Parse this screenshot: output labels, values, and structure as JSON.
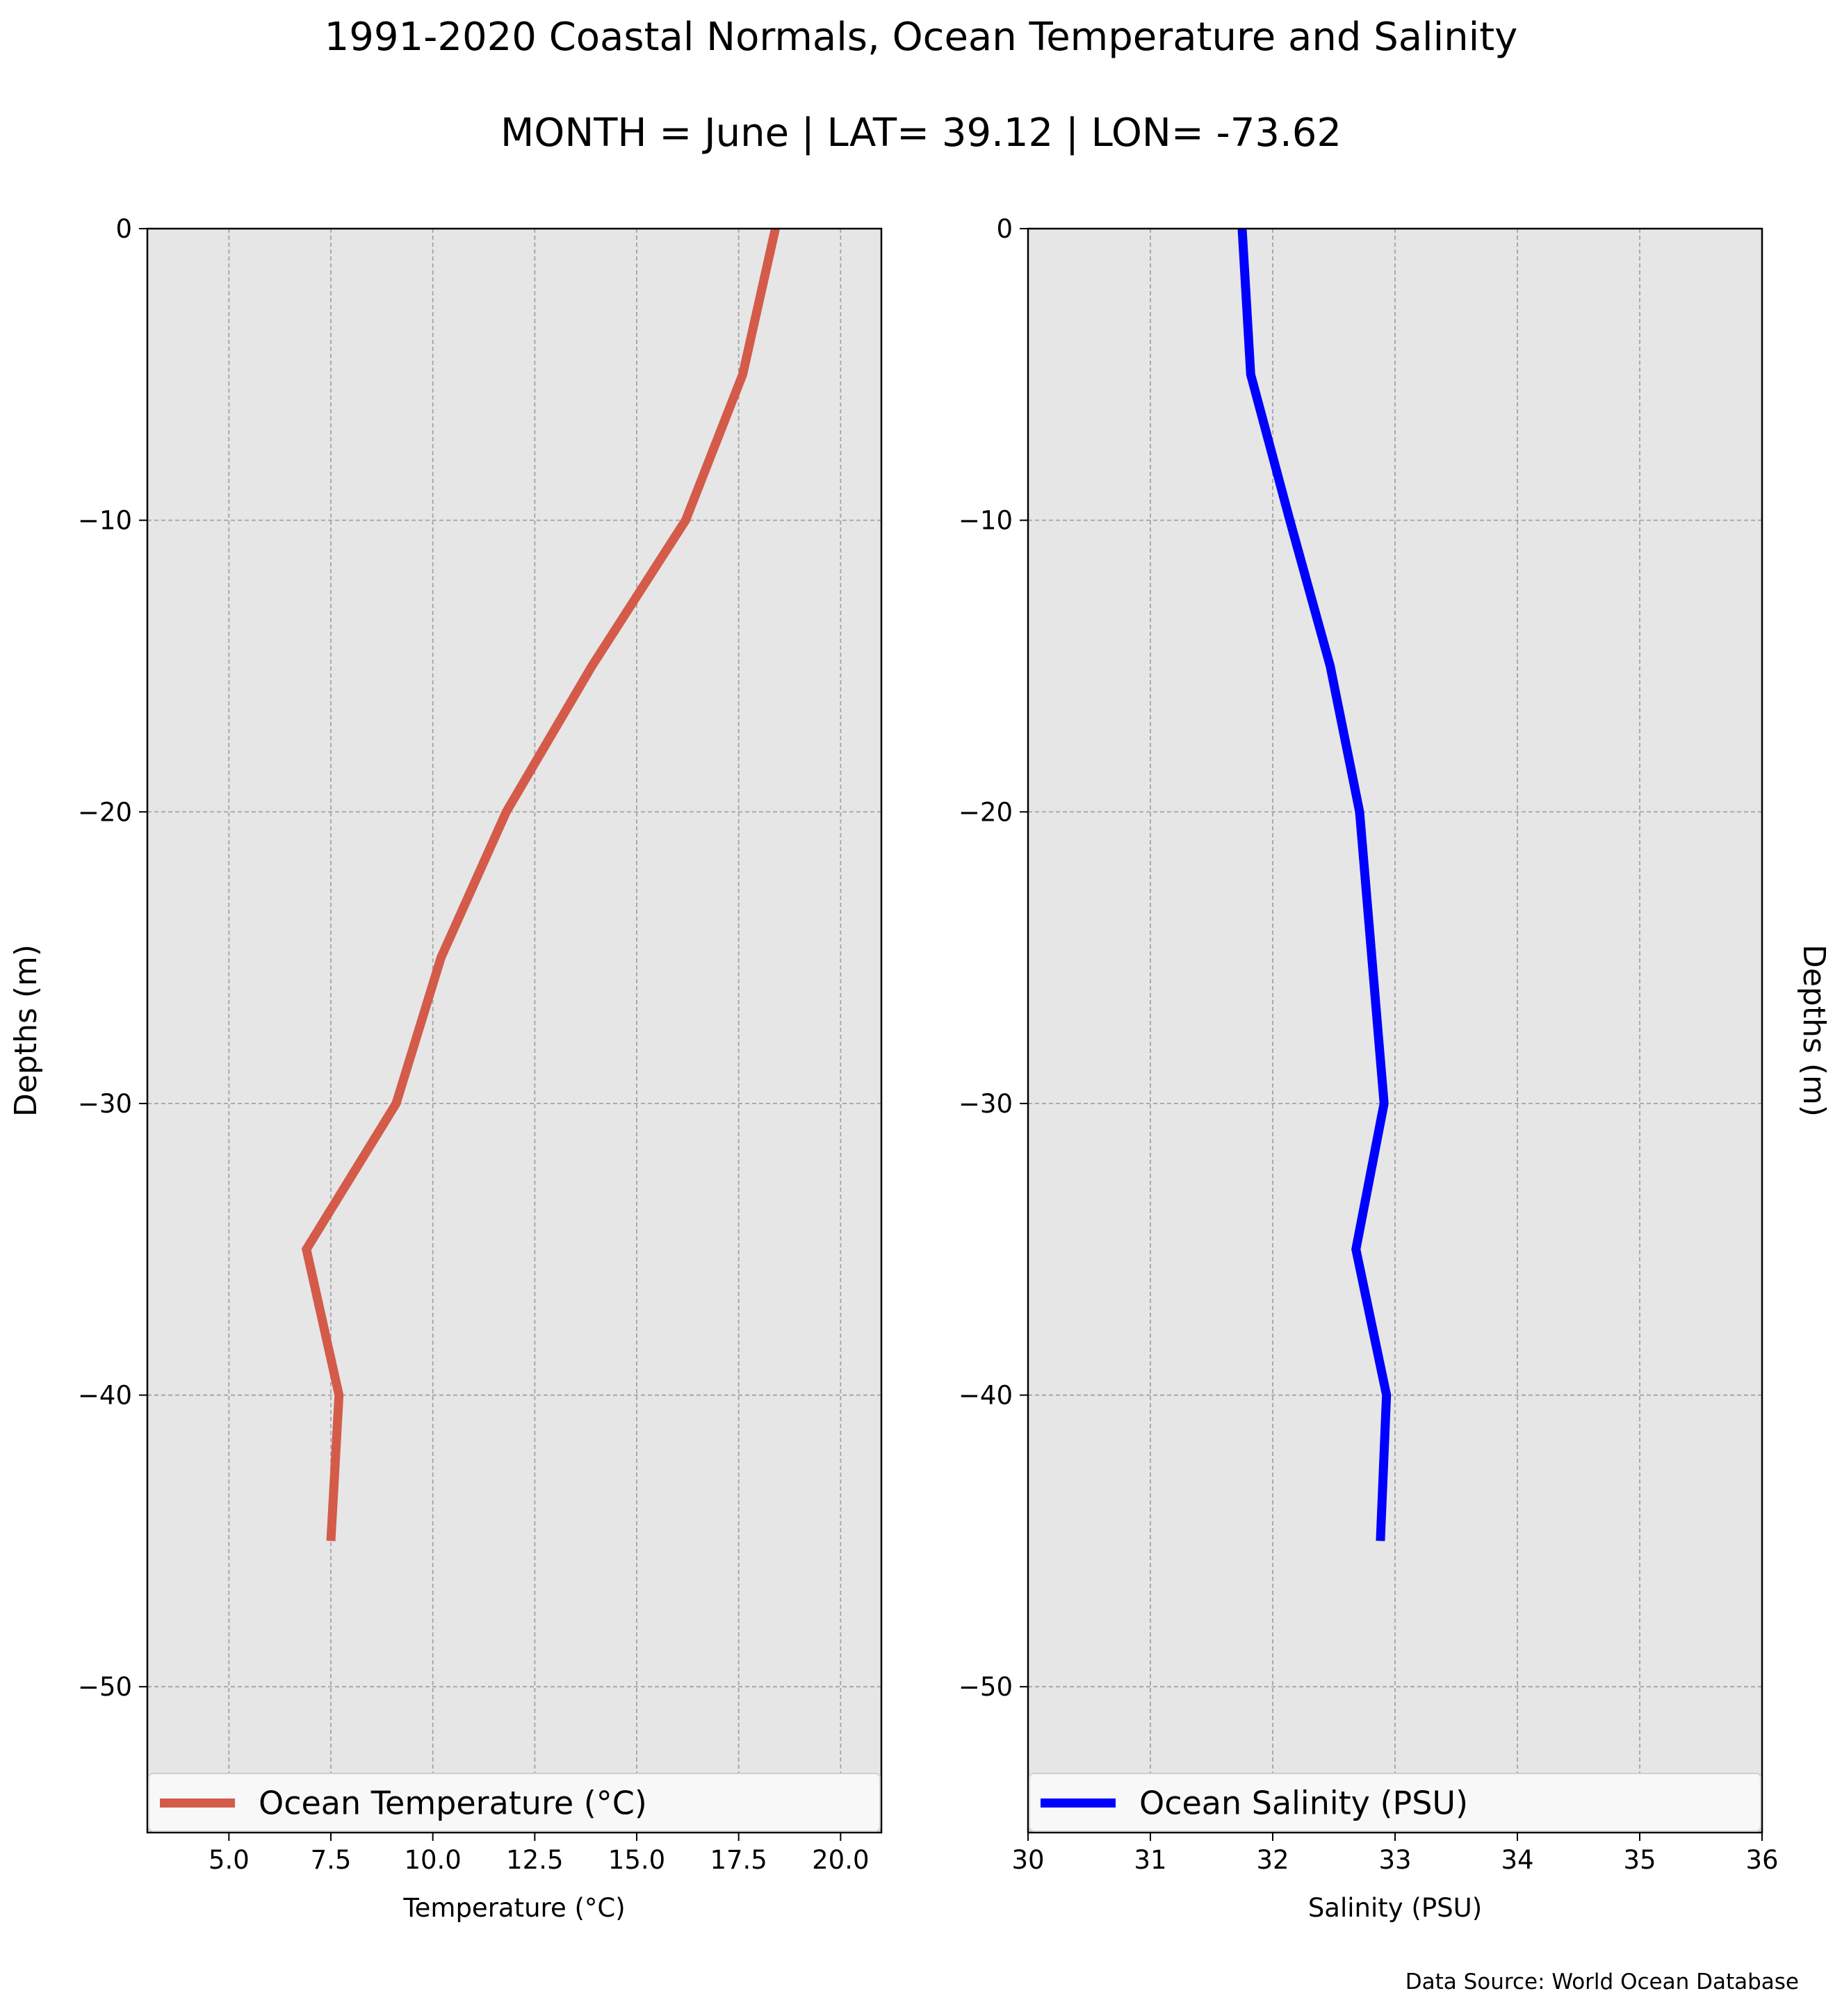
{
  "figure": {
    "title": "1991-2020 Coastal Normals, Ocean Temperature and Salinity",
    "subtitle": "MONTH = June | LAT= 39.12 | LON= -73.62",
    "source": "Data Source: World Ocean Database",
    "background_color": "#ffffff"
  },
  "chart_data": [
    {
      "type": "line",
      "orientation": "vertical-profile",
      "xlabel": "Temperature ($^\\circ$C)",
      "xlabel_display": "Temperature (°C)",
      "ylabel": "Depths (m)",
      "xlim": [
        3.0,
        21.0
      ],
      "ylim": [
        -55,
        0
      ],
      "x_ticks": [
        5.0,
        7.5,
        10.0,
        12.5,
        15.0,
        17.5,
        20.0
      ],
      "x_tick_labels": [
        "5.0",
        "7.5",
        "10.0",
        "12.5",
        "15.0",
        "17.5",
        "20.0"
      ],
      "y_ticks": [
        0,
        -10,
        -20,
        -30,
        -40,
        -50
      ],
      "y_tick_labels": [
        "0",
        "−10",
        "−20",
        "−30",
        "−40",
        "−50"
      ],
      "grid": true,
      "grid_style": "dashed",
      "axes_facecolor": "#e6e6e6",
      "legend_position": "bottom",
      "series": [
        {
          "name": "Ocean Temperature (°C)",
          "color": "#d45b4a",
          "x": [
            18.4,
            17.6,
            16.2,
            13.9,
            11.8,
            10.2,
            9.1,
            6.9,
            7.7,
            7.5
          ],
          "y": [
            0,
            -5,
            -10,
            -15,
            -20,
            -25,
            -30,
            -35,
            -40,
            -45
          ]
        }
      ]
    },
    {
      "type": "line",
      "orientation": "vertical-profile",
      "xlabel": "Salinity (PSU)",
      "ylabel": "Depths (m)",
      "ylabel_side": "right",
      "xlim": [
        30,
        36
      ],
      "ylim": [
        -55,
        0
      ],
      "x_ticks": [
        30,
        31,
        32,
        33,
        34,
        35,
        36
      ],
      "x_tick_labels": [
        "30",
        "31",
        "32",
        "33",
        "34",
        "35",
        "36"
      ],
      "y_ticks": [
        0,
        -10,
        -20,
        -30,
        -40,
        -50
      ],
      "y_tick_labels": [
        "0",
        "−10",
        "−20",
        "−30",
        "−40",
        "−50"
      ],
      "grid": true,
      "grid_style": "dashed",
      "axes_facecolor": "#e6e6e6",
      "legend_position": "bottom",
      "series": [
        {
          "name": "Ocean Salinity (PSU)",
          "color": "#0000ff",
          "x": [
            31.75,
            31.82,
            32.14,
            32.47,
            32.71,
            32.81,
            32.91,
            32.68,
            32.93,
            32.88
          ],
          "y": [
            0,
            -5,
            -10,
            -15,
            -20,
            -25,
            -30,
            -35,
            -40,
            -45
          ]
        }
      ]
    }
  ]
}
